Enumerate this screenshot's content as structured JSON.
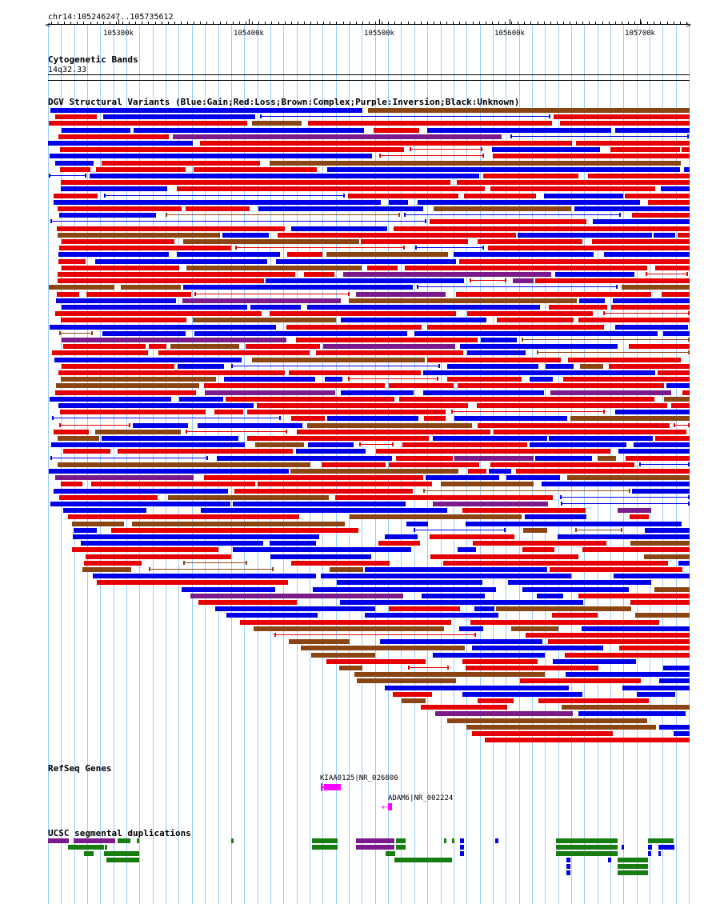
{
  "header": {
    "coords": "chr14:105246247..105735612"
  },
  "ruler": {
    "ticks": [
      "105300k",
      "105400k",
      "105500k",
      "105600k",
      "105700k"
    ]
  },
  "cytoband": {
    "title": "Cytogenetic Bands",
    "band": "14q32.33"
  },
  "dgv": {
    "title": "DGV Structural Variants (Blue:Gain;Red:Loss;Brown:Complex;Purple:Inversion;Black:Unknown)"
  },
  "refseq": {
    "title": "RefSeq Genes",
    "genes": [
      {
        "name": "KIAA0125|NR_026800",
        "strand": "+"
      },
      {
        "name": "ADAM6|NR_002224",
        "strand": "-"
      }
    ]
  },
  "segdups": {
    "title": "UCSC segmental duplications"
  },
  "colors": {
    "gain": "#0000e6",
    "loss": "#e60000",
    "complex": "#8b4513",
    "inversion": "#7b1a8b",
    "gene": "#ff00ff",
    "segdup": "#177d10",
    "gridline": "#99ccff"
  }
}
